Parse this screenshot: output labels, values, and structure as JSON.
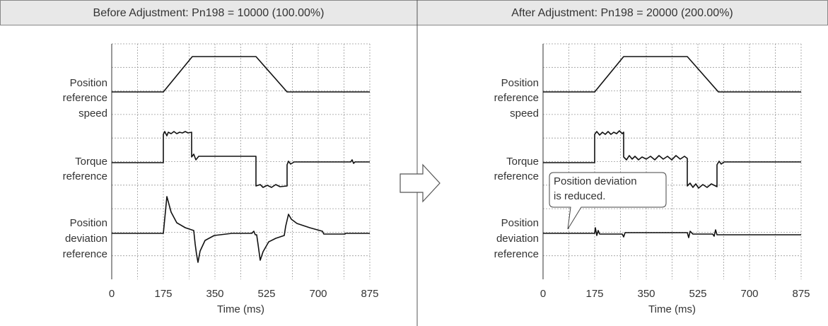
{
  "panels": [
    {
      "title": "Before Adjustment: Pn198 = 10000 (100.00%)",
      "row_labels": [
        [
          "Position",
          "reference",
          "speed"
        ],
        [
          "Torque",
          "reference"
        ],
        [
          "Position",
          "deviation",
          "reference"
        ]
      ],
      "x_ticks": [
        "0",
        "175",
        "350",
        "525",
        "700",
        "875"
      ],
      "x_label": "Time (ms)"
    },
    {
      "title": "After Adjustment: Pn198 = 20000 (200.00%)",
      "row_labels": [
        [
          "Position",
          "reference",
          "speed"
        ],
        [
          "Torque",
          "reference"
        ],
        [
          "Position",
          "deviation",
          "reference"
        ]
      ],
      "x_ticks": [
        "0",
        "175",
        "350",
        "525",
        "700",
        "875"
      ],
      "x_label": "Time (ms)",
      "callout": [
        "Position deviation",
        "is reduced."
      ]
    }
  ]
}
